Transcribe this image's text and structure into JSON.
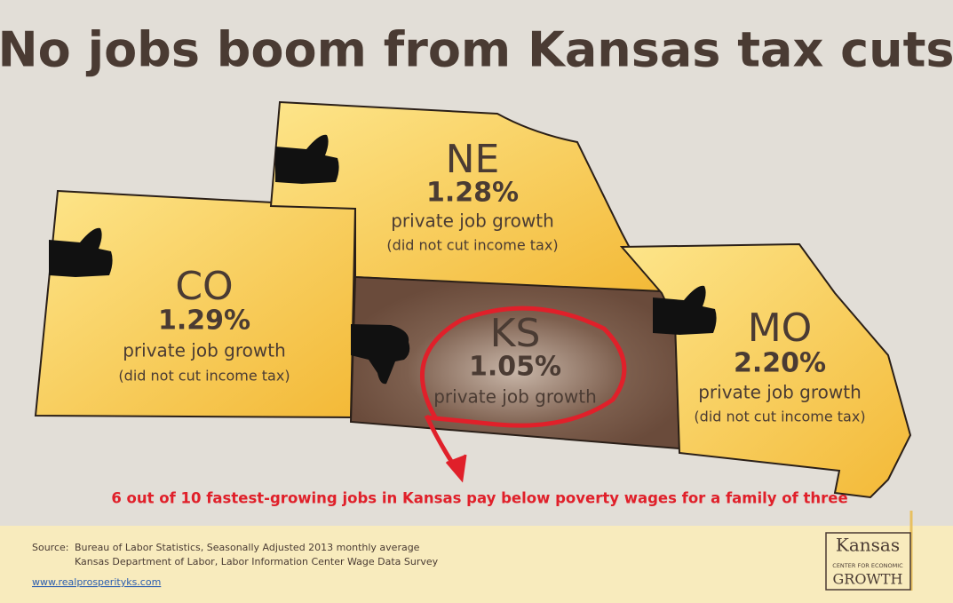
{
  "title": "No jobs boom from Kansas tax cuts",
  "states": [
    {
      "abbr": "CO",
      "rate": "1.29%",
      "label": "private job growth",
      "note": "(did not cut income tax)"
    },
    {
      "abbr": "NE",
      "rate": "1.28%",
      "label": "private job growth",
      "note": "(did not cut income tax)"
    },
    {
      "abbr": "KS",
      "rate": "1.05%",
      "label": "private job growth"
    },
    {
      "abbr": "MO",
      "rate": "2.20%",
      "label": "private job growth",
      "note": "(did not cut income tax)"
    }
  ],
  "callout": "6 out of 10 fastest-growing jobs in Kansas pay below poverty wages for a family of three",
  "source": {
    "label": "Source:",
    "lines": [
      "Bureau of Labor Statistics, Seasonally Adjusted 2013 monthly average",
      "Kansas Department of Labor, Labor Information Center Wage Data Survey"
    ]
  },
  "url": "www.realprosperityks.com",
  "logo": {
    "name": "Kansas",
    "subtitle": "CENTER FOR ECONOMIC",
    "tag": "GROWTH"
  }
}
